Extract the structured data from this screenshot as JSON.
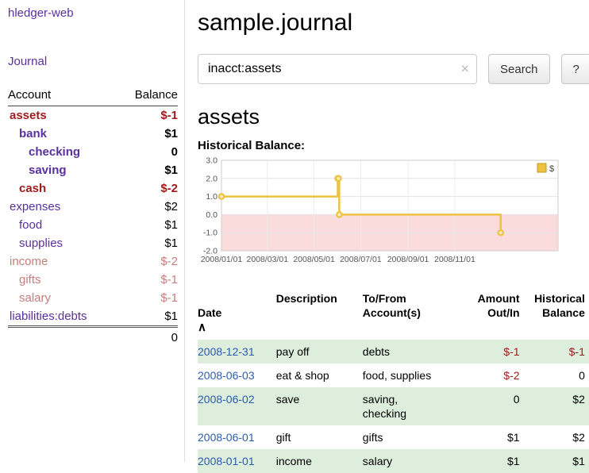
{
  "sidebar": {
    "app_title": "hledger-web",
    "journal_label": "Journal",
    "accounts_table": {
      "headers": {
        "account": "Account",
        "balance": "Balance"
      },
      "rows": [
        {
          "name": "assets",
          "balance": "$-1",
          "depth": 1,
          "bold": true,
          "tone": "neg-strong"
        },
        {
          "name": "bank",
          "balance": "$1",
          "depth": 2,
          "bold": true,
          "tone": "normal"
        },
        {
          "name": "checking",
          "balance": "0",
          "depth": 3,
          "bold": true,
          "tone": "normal"
        },
        {
          "name": "saving",
          "balance": "$1",
          "depth": 3,
          "bold": true,
          "tone": "normal"
        },
        {
          "name": "cash",
          "balance": "$-2",
          "depth": 2,
          "bold": true,
          "tone": "neg-strong"
        },
        {
          "name": "expenses",
          "balance": "$2",
          "depth": 1,
          "bold": false,
          "tone": "normal"
        },
        {
          "name": "food",
          "balance": "$1",
          "depth": 2,
          "bold": false,
          "tone": "normal"
        },
        {
          "name": "supplies",
          "balance": "$1",
          "depth": 2,
          "bold": false,
          "tone": "normal"
        },
        {
          "name": "income",
          "balance": "$-2",
          "depth": 1,
          "bold": false,
          "tone": "neg-soft"
        },
        {
          "name": "gifts",
          "balance": "$-1",
          "depth": 2,
          "bold": false,
          "tone": "neg-soft"
        },
        {
          "name": "salary",
          "balance": "$-1",
          "depth": 2,
          "bold": false,
          "tone": "neg-soft"
        },
        {
          "name": "liabilities:debts",
          "balance": "$1",
          "depth": 1,
          "bold": false,
          "tone": "normal"
        }
      ],
      "total": "0"
    }
  },
  "main": {
    "title": "sample.journal",
    "search": {
      "value": "inacct:assets",
      "clear_icon": "×",
      "button_label": "Search",
      "help_label": "?"
    },
    "account_heading": "assets",
    "chart_label": "Historical Balance:"
  },
  "chart_data": {
    "type": "line",
    "step": true,
    "title": "Historical Balance",
    "series": [
      {
        "name": "$",
        "color": "#edc240",
        "points": [
          {
            "date": "2008-01-01",
            "value": 1
          },
          {
            "date": "2008-06-01",
            "value": 2
          },
          {
            "date": "2008-06-02",
            "value": 2
          },
          {
            "date": "2008-06-03",
            "value": 0
          },
          {
            "date": "2008-12-31",
            "value": -1
          }
        ]
      }
    ],
    "x_ticks": [
      "2008/01/01",
      "2008/03/01",
      "2008/05/01",
      "2008/07/01",
      "2008/09/01",
      "2008/11/01"
    ],
    "y_ticks": [
      3.0,
      2.0,
      1.0,
      0.0,
      -1.0,
      -2.0
    ],
    "ylim": [
      -2,
      3
    ],
    "xlim": [
      "2008-01-01",
      "2009-03-16"
    ],
    "grid": true,
    "negative_region_color": "#fbdcdc",
    "legend": {
      "label": "$",
      "position": "top-right"
    }
  },
  "register_table": {
    "headers": {
      "date": "Date",
      "sort_icon": "∧",
      "description": "Description",
      "to_from": "To/From\nAccount(s)",
      "amount": "Amount\nOut/In",
      "balance": "Historical\nBalance"
    },
    "rows": [
      {
        "date": "2008-12-31",
        "description": "pay off",
        "to_from": "debts",
        "amount": "$-1",
        "balance": "$-1"
      },
      {
        "date": "2008-06-03",
        "description": "eat & shop",
        "to_from": "food, supplies",
        "amount": "$-2",
        "balance": "0"
      },
      {
        "date": "2008-06-02",
        "description": "save",
        "to_from": "saving,\nchecking",
        "amount": "0",
        "balance": "$2"
      },
      {
        "date": "2008-06-01",
        "description": "gift",
        "to_from": "gifts",
        "amount": "$1",
        "balance": "$2"
      },
      {
        "date": "2008-01-01",
        "description": "income",
        "to_from": "salary",
        "amount": "$1",
        "balance": "$1"
      }
    ]
  },
  "colors": {
    "link_purple": "#5a2f9e",
    "date_link_blue": "#2a5db0",
    "negative_strong": "#9e1a1a",
    "negative_soft": "#c47e7e",
    "row_stripe_green": "#ddeedd",
    "chart_line_gold": "#edc240",
    "chart_negative_pink": "#fbdcdc"
  }
}
